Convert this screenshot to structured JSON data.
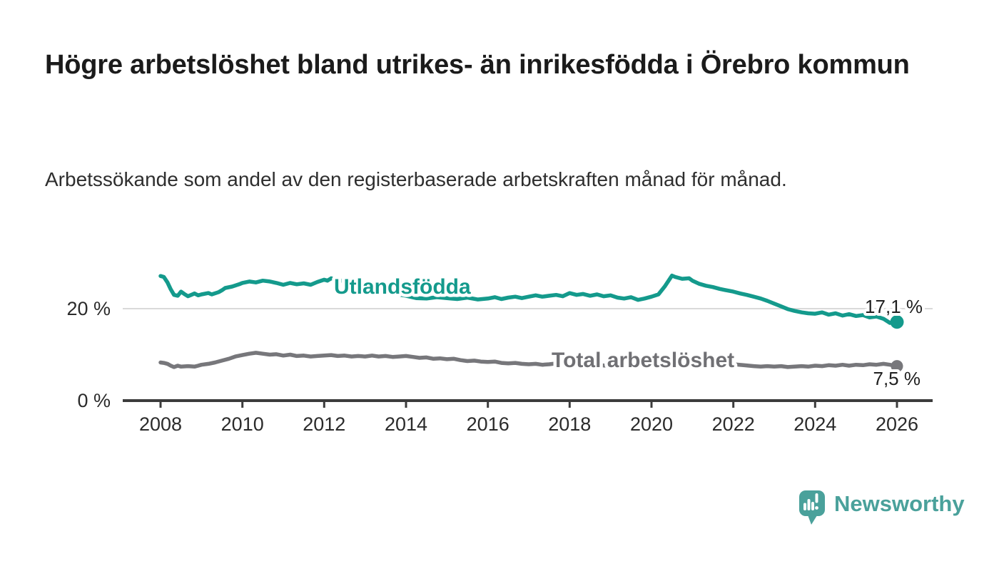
{
  "title": "Högre arbetslöshet bland utrikes- än inrikesfödda i Örebro kommun",
  "subtitle": "Arbetssökande som andel av den registerbaserade arbetskraften månad för månad.",
  "branding": {
    "logo_text": "Newsworthy"
  },
  "colors": {
    "accent_teal": "#149a8c",
    "series_gray": "#77777b",
    "gray_label": "#707074",
    "brand_teal": "#4aa19b",
    "title": "#1b1b1b",
    "subtitle": "#2e2e2e",
    "axis_line": "#3c3c3c",
    "axis_text": "#2b2b2b",
    "gridline": "#d9d9d9",
    "value_label": "#1f1f1f"
  },
  "chart_data": {
    "type": "line",
    "title": "Högre arbetslöshet bland utrikes- än inrikesfödda i Örebro kommun",
    "xlabel": "",
    "ylabel": "",
    "unit": "%",
    "xlim": [
      2007.1,
      2026.9
    ],
    "ylim": [
      0,
      34
    ],
    "x_ticks": [
      2008,
      2010,
      2012,
      2014,
      2016,
      2018,
      2020,
      2022,
      2024,
      2026
    ],
    "y_ticks": [
      {
        "value": 0,
        "label": "0 %"
      },
      {
        "value": 20,
        "label": "20 %"
      }
    ],
    "y_gridlines": [
      20
    ],
    "legend_position": "inline-on-line",
    "series": [
      {
        "name": "Utlandsfödda",
        "color": "#149a8c",
        "end_label": "17,1 %",
        "end_value": 17.1,
        "dot_radius": 9.5,
        "points": [
          [
            2008.0,
            27.1
          ],
          [
            2008.08,
            26.9
          ],
          [
            2008.17,
            25.7
          ],
          [
            2008.25,
            24.2
          ],
          [
            2008.33,
            23.0
          ],
          [
            2008.42,
            22.8
          ],
          [
            2008.5,
            23.7
          ],
          [
            2008.58,
            23.2
          ],
          [
            2008.67,
            22.7
          ],
          [
            2008.75,
            23.0
          ],
          [
            2008.83,
            23.3
          ],
          [
            2008.92,
            22.9
          ],
          [
            2009.0,
            23.1
          ],
          [
            2009.17,
            23.4
          ],
          [
            2009.25,
            23.1
          ],
          [
            2009.42,
            23.6
          ],
          [
            2009.5,
            24.0
          ],
          [
            2009.58,
            24.5
          ],
          [
            2009.75,
            24.8
          ],
          [
            2009.92,
            25.3
          ],
          [
            2010.0,
            25.6
          ],
          [
            2010.17,
            25.9
          ],
          [
            2010.33,
            25.7
          ],
          [
            2010.5,
            26.1
          ],
          [
            2010.67,
            25.9
          ],
          [
            2010.83,
            25.6
          ],
          [
            2011.0,
            25.2
          ],
          [
            2011.17,
            25.6
          ],
          [
            2011.33,
            25.3
          ],
          [
            2011.5,
            25.5
          ],
          [
            2011.67,
            25.2
          ],
          [
            2011.83,
            25.8
          ],
          [
            2012.0,
            26.3
          ],
          [
            2012.08,
            26.1
          ],
          [
            2012.17,
            26.6
          ],
          [
            2012.33,
            26.2
          ],
          [
            2012.5,
            26.0
          ],
          [
            2012.67,
            25.7
          ],
          [
            2012.83,
            25.5
          ],
          [
            2013.0,
            25.1
          ],
          [
            2013.25,
            24.5
          ],
          [
            2013.5,
            23.8
          ],
          [
            2013.75,
            23.2
          ],
          [
            2014.0,
            22.8
          ],
          [
            2014.25,
            22.3
          ],
          [
            2014.5,
            22.2
          ],
          [
            2014.75,
            22.5
          ],
          [
            2015.0,
            22.3
          ],
          [
            2015.25,
            22.1
          ],
          [
            2015.5,
            22.4
          ],
          [
            2015.75,
            22.0
          ],
          [
            2016.0,
            22.2
          ],
          [
            2016.17,
            22.5
          ],
          [
            2016.33,
            22.1
          ],
          [
            2016.5,
            22.4
          ],
          [
            2016.67,
            22.6
          ],
          [
            2016.83,
            22.3
          ],
          [
            2017.0,
            22.6
          ],
          [
            2017.17,
            22.9
          ],
          [
            2017.33,
            22.6
          ],
          [
            2017.5,
            22.8
          ],
          [
            2017.67,
            23.0
          ],
          [
            2017.83,
            22.7
          ],
          [
            2018.0,
            23.4
          ],
          [
            2018.17,
            23.0
          ],
          [
            2018.33,
            23.2
          ],
          [
            2018.5,
            22.8
          ],
          [
            2018.67,
            23.1
          ],
          [
            2018.83,
            22.7
          ],
          [
            2019.0,
            22.9
          ],
          [
            2019.17,
            22.4
          ],
          [
            2019.33,
            22.2
          ],
          [
            2019.5,
            22.5
          ],
          [
            2019.67,
            21.9
          ],
          [
            2019.83,
            22.2
          ],
          [
            2020.0,
            22.6
          ],
          [
            2020.17,
            23.1
          ],
          [
            2020.33,
            24.9
          ],
          [
            2020.5,
            27.2
          ],
          [
            2020.58,
            26.9
          ],
          [
            2020.75,
            26.5
          ],
          [
            2020.92,
            26.6
          ],
          [
            2021.0,
            26.1
          ],
          [
            2021.17,
            25.4
          ],
          [
            2021.33,
            25.0
          ],
          [
            2021.5,
            24.7
          ],
          [
            2021.67,
            24.3
          ],
          [
            2021.83,
            24.0
          ],
          [
            2022.0,
            23.7
          ],
          [
            2022.17,
            23.3
          ],
          [
            2022.33,
            23.0
          ],
          [
            2022.5,
            22.6
          ],
          [
            2022.67,
            22.2
          ],
          [
            2022.83,
            21.7
          ],
          [
            2023.0,
            21.1
          ],
          [
            2023.17,
            20.5
          ],
          [
            2023.33,
            19.9
          ],
          [
            2023.5,
            19.5
          ],
          [
            2023.67,
            19.2
          ],
          [
            2023.83,
            19.0
          ],
          [
            2024.0,
            18.9
          ],
          [
            2024.17,
            19.2
          ],
          [
            2024.33,
            18.7
          ],
          [
            2024.5,
            19.0
          ],
          [
            2024.67,
            18.5
          ],
          [
            2024.83,
            18.8
          ],
          [
            2025.0,
            18.4
          ],
          [
            2025.17,
            18.6
          ],
          [
            2025.33,
            18.1
          ],
          [
            2025.5,
            18.3
          ],
          [
            2025.67,
            17.8
          ],
          [
            2025.83,
            16.9
          ],
          [
            2026.0,
            17.1
          ]
        ]
      },
      {
        "name": "Total arbetslöshet",
        "color": "#77777b",
        "end_label": "7,5 %",
        "end_value": 7.5,
        "dot_radius": 8.5,
        "points": [
          [
            2008.0,
            8.3
          ],
          [
            2008.08,
            8.2
          ],
          [
            2008.17,
            8.0
          ],
          [
            2008.25,
            7.6
          ],
          [
            2008.33,
            7.3
          ],
          [
            2008.42,
            7.6
          ],
          [
            2008.5,
            7.4
          ],
          [
            2008.67,
            7.5
          ],
          [
            2008.83,
            7.4
          ],
          [
            2008.92,
            7.6
          ],
          [
            2009.0,
            7.8
          ],
          [
            2009.17,
            8.0
          ],
          [
            2009.33,
            8.3
          ],
          [
            2009.5,
            8.7
          ],
          [
            2009.67,
            9.1
          ],
          [
            2009.83,
            9.6
          ],
          [
            2010.0,
            9.9
          ],
          [
            2010.17,
            10.2
          ],
          [
            2010.33,
            10.4
          ],
          [
            2010.5,
            10.2
          ],
          [
            2010.67,
            10.0
          ],
          [
            2010.83,
            10.1
          ],
          [
            2011.0,
            9.8
          ],
          [
            2011.17,
            10.0
          ],
          [
            2011.33,
            9.7
          ],
          [
            2011.5,
            9.8
          ],
          [
            2011.67,
            9.6
          ],
          [
            2011.83,
            9.7
          ],
          [
            2012.0,
            9.8
          ],
          [
            2012.17,
            9.9
          ],
          [
            2012.33,
            9.7
          ],
          [
            2012.5,
            9.8
          ],
          [
            2012.67,
            9.6
          ],
          [
            2012.83,
            9.7
          ],
          [
            2013.0,
            9.6
          ],
          [
            2013.17,
            9.8
          ],
          [
            2013.33,
            9.6
          ],
          [
            2013.5,
            9.7
          ],
          [
            2013.67,
            9.5
          ],
          [
            2013.83,
            9.6
          ],
          [
            2014.0,
            9.7
          ],
          [
            2014.17,
            9.5
          ],
          [
            2014.33,
            9.3
          ],
          [
            2014.5,
            9.4
          ],
          [
            2014.67,
            9.1
          ],
          [
            2014.83,
            9.2
          ],
          [
            2015.0,
            9.0
          ],
          [
            2015.17,
            9.1
          ],
          [
            2015.33,
            8.8
          ],
          [
            2015.5,
            8.6
          ],
          [
            2015.67,
            8.7
          ],
          [
            2015.83,
            8.5
          ],
          [
            2016.0,
            8.4
          ],
          [
            2016.17,
            8.5
          ],
          [
            2016.33,
            8.2
          ],
          [
            2016.5,
            8.1
          ],
          [
            2016.67,
            8.2
          ],
          [
            2016.83,
            8.0
          ],
          [
            2017.0,
            7.9
          ],
          [
            2017.17,
            8.0
          ],
          [
            2017.33,
            7.8
          ],
          [
            2017.5,
            7.9
          ],
          [
            2017.67,
            8.1
          ],
          [
            2017.83,
            7.9
          ],
          [
            2018.0,
            7.8
          ],
          [
            2018.25,
            7.7
          ],
          [
            2018.5,
            7.6
          ],
          [
            2018.75,
            7.7
          ],
          [
            2019.0,
            7.5
          ],
          [
            2019.25,
            7.4
          ],
          [
            2019.5,
            7.5
          ],
          [
            2019.75,
            7.6
          ],
          [
            2020.0,
            7.9
          ],
          [
            2020.25,
            8.7
          ],
          [
            2020.5,
            9.2
          ],
          [
            2020.75,
            9.0
          ],
          [
            2021.0,
            8.8
          ],
          [
            2021.25,
            8.6
          ],
          [
            2021.5,
            8.4
          ],
          [
            2021.75,
            8.1
          ],
          [
            2022.0,
            7.9
          ],
          [
            2022.25,
            7.7
          ],
          [
            2022.5,
            7.5
          ],
          [
            2022.67,
            7.4
          ],
          [
            2022.83,
            7.5
          ],
          [
            2023.0,
            7.4
          ],
          [
            2023.17,
            7.5
          ],
          [
            2023.33,
            7.3
          ],
          [
            2023.5,
            7.4
          ],
          [
            2023.67,
            7.5
          ],
          [
            2023.83,
            7.4
          ],
          [
            2024.0,
            7.6
          ],
          [
            2024.17,
            7.5
          ],
          [
            2024.33,
            7.7
          ],
          [
            2024.5,
            7.6
          ],
          [
            2024.67,
            7.8
          ],
          [
            2024.83,
            7.6
          ],
          [
            2025.0,
            7.8
          ],
          [
            2025.17,
            7.7
          ],
          [
            2025.33,
            7.9
          ],
          [
            2025.5,
            7.8
          ],
          [
            2025.67,
            8.0
          ],
          [
            2025.83,
            7.8
          ],
          [
            2026.0,
            7.5
          ]
        ]
      }
    ]
  }
}
